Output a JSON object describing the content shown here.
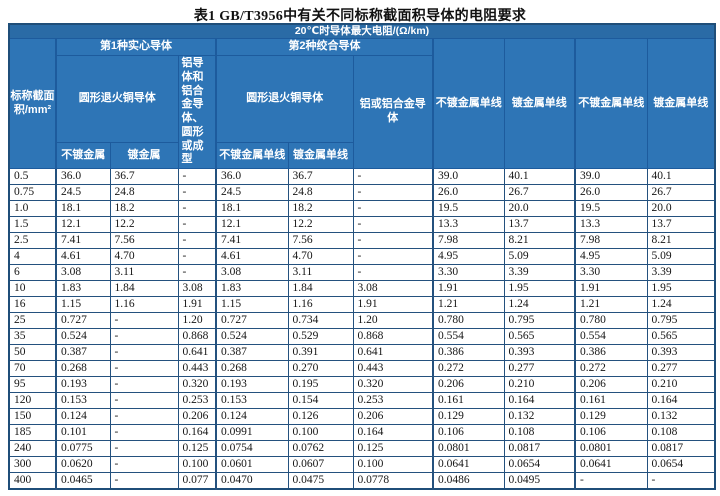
{
  "page": {
    "title": "表1  GB/T3956中有关不同标称截面积导体的电阻要求"
  },
  "colors": {
    "header_bg": "#2e75b6",
    "header_top_bg": "#2a6ba6",
    "header_border": "#1d5b9d",
    "cell_border": "#24517e",
    "data_text": "#151515"
  },
  "table": {
    "unit_header": "20℃时导体最大电阻/(Ω/km)",
    "headers": {
      "nominal_area": "标称截面积/mm²",
      "group_solid": "第1种实心导体",
      "group_stranded": "第2种绞合导体",
      "solid_copper": "圆形退火铜导体",
      "solid_aluminum": "铝导体和铝合金导体、圆形或成型",
      "solid_unplated": "不镀金属",
      "solid_plated": "镀金属",
      "stranded_copper": "圆形退火铜导体",
      "stranded_aluminum": "铝或铝合金导体",
      "stranded_unplated": "不镀金属单线",
      "stranded_plated": "镀金属单线",
      "col8_unplated_single": "不镀金属单线",
      "col9_plated_single": "镀金属单线",
      "col10_unplated_single": "不镀金属单线",
      "col11_plated_single": "镀金属单线"
    },
    "rows": [
      [
        "0.5",
        "36.0",
        "36.7",
        "-",
        "36.0",
        "36.7",
        "-",
        "39.0",
        "40.1",
        "39.0",
        "40.1"
      ],
      [
        "0.75",
        "24.5",
        "24.8",
        "-",
        "24.5",
        "24.8",
        "-",
        "26.0",
        "26.7",
        "26.0",
        "26.7"
      ],
      [
        "1.0",
        "18.1",
        "18.2",
        "-",
        "18.1",
        "18.2",
        "-",
        "19.5",
        "20.0",
        "19.5",
        "20.0"
      ],
      [
        "1.5",
        "12.1",
        "12.2",
        "-",
        "12.1",
        "12.2",
        "-",
        "13.3",
        "13.7",
        "13.3",
        "13.7"
      ],
      [
        "2.5",
        "7.41",
        "7.56",
        "-",
        "7.41",
        "7.56",
        "-",
        "7.98",
        "8.21",
        "7.98",
        "8.21"
      ],
      [
        "4",
        "4.61",
        "4.70",
        "-",
        "4.61",
        "4.70",
        "-",
        "4.95",
        "5.09",
        "4.95",
        "5.09"
      ],
      [
        "6",
        "3.08",
        "3.11",
        "-",
        "3.08",
        "3.11",
        "-",
        "3.30",
        "3.39",
        "3.30",
        "3.39"
      ],
      [
        "10",
        "1.83",
        "1.84",
        "3.08",
        "1.83",
        "1.84",
        "3.08",
        "1.91",
        "1.95",
        "1.91",
        "1.95"
      ],
      [
        "16",
        "1.15",
        "1.16",
        "1.91",
        "1.15",
        "1.16",
        "1.91",
        "1.21",
        "1.24",
        "1.21",
        "1.24"
      ],
      [
        "25",
        "0.727",
        "-",
        "1.20",
        "0.727",
        "0.734",
        "1.20",
        "0.780",
        "0.795",
        "0.780",
        "0.795"
      ],
      [
        "35",
        "0.524",
        "-",
        "0.868",
        "0.524",
        "0.529",
        "0.868",
        "0.554",
        "0.565",
        "0.554",
        "0.565"
      ],
      [
        "50",
        "0.387",
        "-",
        "0.641",
        "0.387",
        "0.391",
        "0.641",
        "0.386",
        "0.393",
        "0.386",
        "0.393"
      ],
      [
        "70",
        "0.268",
        "-",
        "0.443",
        "0.268",
        "0.270",
        "0.443",
        "0.272",
        "0.277",
        "0.272",
        "0.277"
      ],
      [
        "95",
        "0.193",
        "-",
        "0.320",
        "0.193",
        "0.195",
        "0.320",
        "0.206",
        "0.210",
        "0.206",
        "0.210"
      ],
      [
        "120",
        "0.153",
        "-",
        "0.253",
        "0.153",
        "0.154",
        "0.253",
        "0.161",
        "0.164",
        "0.161",
        "0.164"
      ],
      [
        "150",
        "0.124",
        "-",
        "0.206",
        "0.124",
        "0.126",
        "0.206",
        "0.129",
        "0.132",
        "0.129",
        "0.132"
      ],
      [
        "185",
        "0.101",
        "-",
        "0.164",
        "0.0991",
        "0.100",
        "0.164",
        "0.106",
        "0.108",
        "0.106",
        "0.108"
      ],
      [
        "240",
        "0.0775",
        "-",
        "0.125",
        "0.0754",
        "0.0762",
        "0.125",
        "0.0801",
        "0.0817",
        "0.0801",
        "0.0817"
      ],
      [
        "300",
        "0.0620",
        "-",
        "0.100",
        "0.0601",
        "0.0607",
        "0.100",
        "0.0641",
        "0.0654",
        "0.0641",
        "0.0654"
      ],
      [
        "400",
        "0.0465",
        "-",
        "0.077",
        "0.0470",
        "0.0475",
        "0.0778",
        "0.0486",
        "0.0495",
        "-",
        "-"
      ]
    ]
  }
}
